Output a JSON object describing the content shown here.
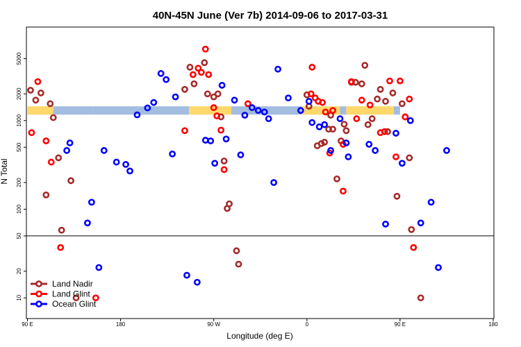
{
  "chart_data": {
    "type": "scatter",
    "title": "40N-45N June (Ver 7b)   2014-09-06 to 2017-03-31",
    "xlabel": "Longitude (deg E)",
    "ylabel": "N Total",
    "y_scale": "log",
    "xlim": [
      90,
      450
    ],
    "ylim": [
      7,
      10000
    ],
    "threshold_line": 50,
    "x_ticks": [
      {
        "value": 90,
        "label": "90 E"
      },
      {
        "value": 180,
        "label": "180"
      },
      {
        "value": 270,
        "label": "90 W"
      },
      {
        "value": 360,
        "label": "0"
      },
      {
        "value": 450,
        "label": "90 E"
      },
      {
        "value": 540,
        "label": "180"
      }
    ],
    "y_ticks": [
      {
        "value": 10,
        "label": "10"
      },
      {
        "value": 20,
        "label": "20"
      },
      {
        "value": 50,
        "label": "50"
      },
      {
        "value": 100,
        "label": "100"
      },
      {
        "value": 200,
        "label": "200"
      },
      {
        "value": 500,
        "label": "500"
      },
      {
        "value": 1000,
        "label": "1000"
      },
      {
        "value": 2000,
        "label": "2000"
      },
      {
        "value": 5000,
        "label": "5000"
      }
    ],
    "legend_position": "bottom-left",
    "series": [
      {
        "name": "Land Nadir",
        "color": "#a52a2a",
        "points": [
          [
            93,
            2200
          ],
          [
            98,
            1700
          ],
          [
            103,
            2050
          ],
          [
            108,
            145
          ],
          [
            112,
            1550
          ],
          [
            115,
            1080
          ],
          [
            120,
            380
          ],
          [
            123,
            58
          ],
          [
            132,
            210
          ],
          [
            137,
            10
          ],
          [
            242,
            2250
          ],
          [
            247,
            4000
          ],
          [
            251,
            2600
          ],
          [
            261,
            4500
          ],
          [
            264,
            2000
          ],
          [
            270,
            1850
          ],
          [
            274,
            2000
          ],
          [
            277,
            1100
          ],
          [
            280,
            350
          ],
          [
            283,
            102
          ],
          [
            285,
            115
          ],
          [
            292,
            34
          ],
          [
            294,
            24
          ],
          [
            360,
            1950
          ],
          [
            362,
            1450
          ],
          [
            370,
            520
          ],
          [
            374,
            550
          ],
          [
            377,
            570
          ],
          [
            381,
            800
          ],
          [
            383,
            1150
          ],
          [
            385,
            800
          ],
          [
            389,
            220
          ],
          [
            393,
            590
          ],
          [
            396,
            910
          ],
          [
            398,
            770
          ],
          [
            403,
            2700
          ],
          [
            407,
            2700
          ],
          [
            413,
            2600
          ],
          [
            416,
            4200
          ],
          [
            419,
            900
          ],
          [
            423,
            1050
          ],
          [
            428,
            1750
          ],
          [
            431,
            2250
          ],
          [
            436,
            1650
          ],
          [
            438,
            750
          ],
          [
            443,
            2050
          ],
          [
            447,
            140
          ],
          [
            452,
            1550
          ],
          [
            455,
            1100
          ],
          [
            459,
            380
          ],
          [
            461,
            59
          ],
          [
            470,
            10
          ]
        ]
      },
      {
        "name": "Land Glint",
        "color": "#ff0000",
        "points": [
          [
            90,
            720
          ],
          [
            94,
            730
          ],
          [
            100,
            2750
          ],
          [
            108,
            590
          ],
          [
            113,
            340
          ],
          [
            122,
            37
          ],
          [
            156,
            10
          ],
          [
            242,
            770
          ],
          [
            250,
            3300
          ],
          [
            255,
            3900
          ],
          [
            258,
            3500
          ],
          [
            262,
            6400
          ],
          [
            265,
            3300
          ],
          [
            270,
            1400
          ],
          [
            273,
            1130
          ],
          [
            277,
            780
          ],
          [
            280,
            280
          ],
          [
            303,
            1550
          ],
          [
            364,
            2000
          ],
          [
            368,
            1800
          ],
          [
            371,
            1650
          ],
          [
            365,
            4000
          ],
          [
            375,
            1600
          ],
          [
            378,
            1250
          ],
          [
            382,
            430
          ],
          [
            385,
            1300
          ],
          [
            395,
            160
          ],
          [
            395,
            540
          ],
          [
            403,
            2750
          ],
          [
            408,
            1050
          ],
          [
            413,
            1700
          ],
          [
            421,
            1500
          ],
          [
            431,
            730
          ],
          [
            435,
            750
          ],
          [
            440,
            2800
          ],
          [
            446,
            390
          ],
          [
            450,
            2800
          ],
          [
            455,
            1100
          ],
          [
            459,
            1750
          ],
          [
            463,
            37
          ]
        ]
      },
      {
        "name": "Ocean Glint",
        "color": "#0000ff",
        "points": [
          [
            128,
            460
          ],
          [
            131,
            560
          ],
          [
            148,
            70
          ],
          [
            152,
            120
          ],
          [
            159,
            22
          ],
          [
            164,
            460
          ],
          [
            176,
            340
          ],
          [
            185,
            320
          ],
          [
            189,
            270
          ],
          [
            196,
            1160
          ],
          [
            206,
            1390
          ],
          [
            212,
            1600
          ],
          [
            219,
            3400
          ],
          [
            224,
            2900
          ],
          [
            230,
            420
          ],
          [
            233,
            1850
          ],
          [
            244,
            18
          ],
          [
            254,
            15
          ],
          [
            262,
            600
          ],
          [
            267,
            590
          ],
          [
            271,
            330
          ],
          [
            278,
            2500
          ],
          [
            282,
            620
          ],
          [
            290,
            1700
          ],
          [
            296,
            410
          ],
          [
            300,
            1150
          ],
          [
            307,
            1400
          ],
          [
            313,
            1300
          ],
          [
            319,
            1250
          ],
          [
            323,
            1050
          ],
          [
            328,
            200
          ],
          [
            332,
            3800
          ],
          [
            342,
            1800
          ],
          [
            354,
            1300
          ],
          [
            362,
            1650
          ],
          [
            365,
            950
          ],
          [
            372,
            850
          ],
          [
            377,
            900
          ],
          [
            383,
            460
          ],
          [
            392,
            1050
          ],
          [
            398,
            560
          ],
          [
            400,
            390
          ],
          [
            420,
            540
          ],
          [
            426,
            460
          ],
          [
            436,
            68
          ],
          [
            446,
            720
          ],
          [
            452,
            330
          ],
          [
            460,
            1000
          ],
          [
            470,
            70
          ],
          [
            480,
            120
          ],
          [
            487,
            22
          ],
          [
            495,
            460
          ]
        ]
      }
    ],
    "data_band": {
      "y_value": 1300,
      "colors": {
        "land": "#ffd86b",
        "ocean": "#a3bde0"
      },
      "segments": [
        {
          "from": 90,
          "to": 115,
          "kind": "land"
        },
        {
          "from": 115,
          "to": 153,
          "kind": "ocean"
        },
        {
          "from": 153,
          "to": 246,
          "kind": "ocean"
        },
        {
          "from": 246,
          "to": 287,
          "kind": "land"
        },
        {
          "from": 287,
          "to": 355,
          "kind": "ocean"
        },
        {
          "from": 355,
          "to": 392,
          "kind": "land"
        },
        {
          "from": 392,
          "to": 398,
          "kind": "ocean"
        },
        {
          "from": 398,
          "to": 444,
          "kind": "land"
        },
        {
          "from": 444,
          "to": 450,
          "kind": "ocean"
        }
      ]
    }
  }
}
